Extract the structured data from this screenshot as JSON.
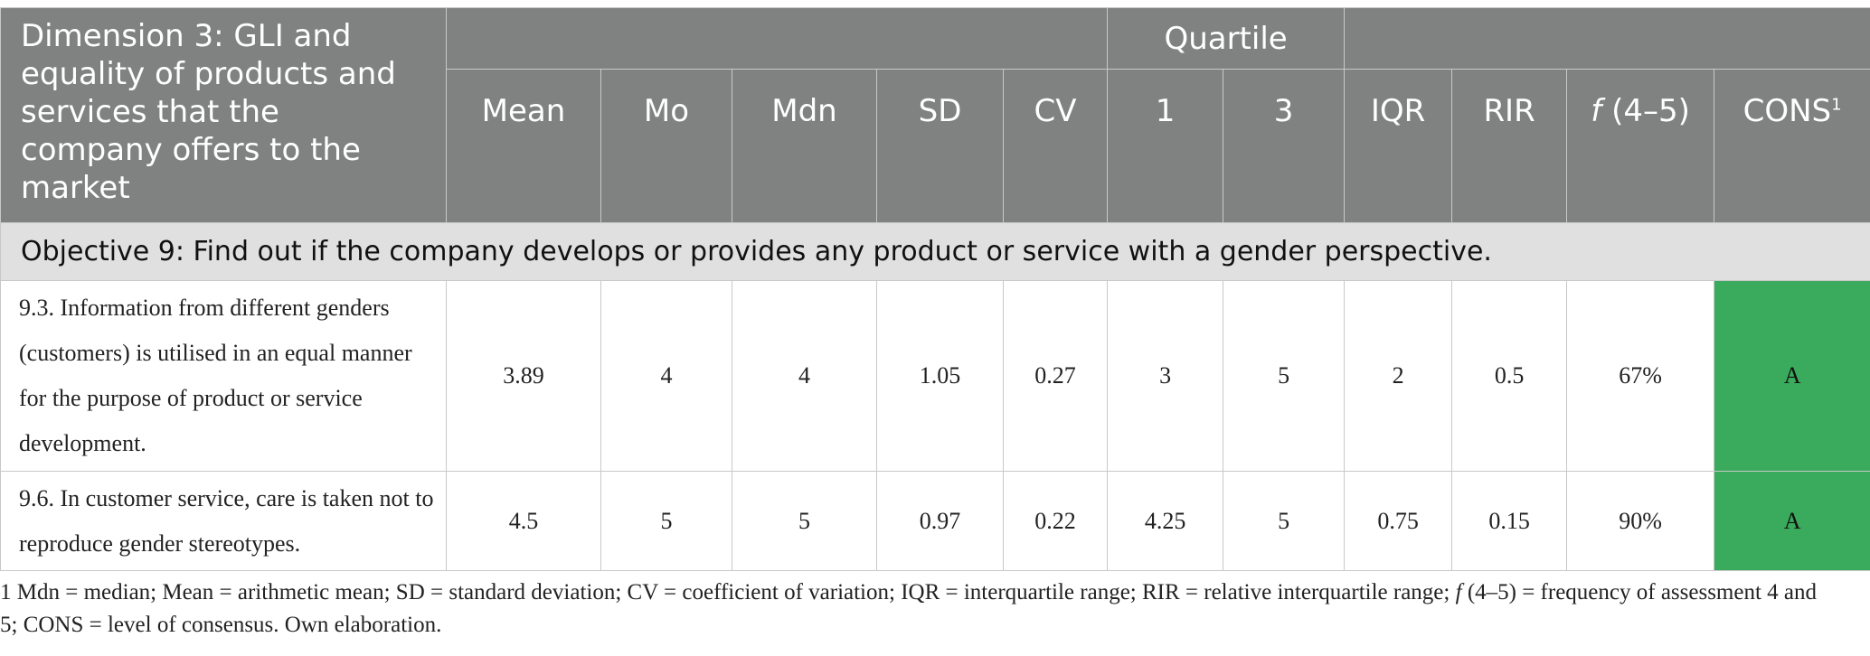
{
  "table": {
    "dimension_header": "Dimension 3: GLI and equality of products and services that the company offers to the market",
    "group_header": "Quartile",
    "columns": [
      "Mean",
      "Mo",
      "Mdn",
      "SD",
      "CV",
      "1",
      "3",
      "IQR",
      "RIR"
    ],
    "freq_col": {
      "italic": "f",
      "rest": " (4–5)"
    },
    "cons_col": {
      "label": "CONS",
      "sup": "1"
    },
    "objective": "Objective 9: Find out if the company develops or provides any product or service with a gender perspective.",
    "rows": [
      {
        "item": "9.3. Information from different genders (customers) is utilised in an equal manner for the purpose of product or service development.",
        "values": [
          "3.89",
          "4",
          "4",
          "1.05",
          "0.27",
          "3",
          "5",
          "2",
          "0.5",
          "67%"
        ],
        "cons": "A"
      },
      {
        "item": "9.6. In customer service, care is taken not to reproduce gender stereotypes.",
        "values": [
          "4.5",
          "5",
          "5",
          "0.97",
          "0.22",
          "4.25",
          "5",
          "0.75",
          "0.15",
          "90%"
        ],
        "cons": "A"
      }
    ],
    "cons_color": "#3aaa5c",
    "header_color": "#808281"
  },
  "footnote": {
    "part1": "1 Mdn = median; Mean = arithmetic mean; SD = standard deviation; CV = coefficient of variation; IQR = interquartile range; RIR = relative interquartile range; ",
    "f": "f",
    "part2": " (4–5) = frequency of assessment 4 and 5; CONS = level of consensus. Own elaboration."
  }
}
